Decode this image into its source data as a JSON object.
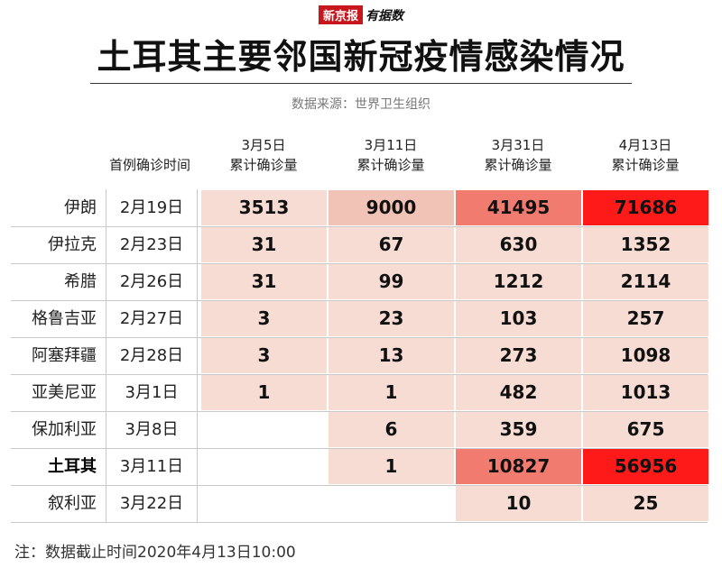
{
  "brand": {
    "paper": "新京报",
    "section": "有据数"
  },
  "title": "土耳其主要邻国新冠疫情感染情况",
  "source": "数据来源：世界卫生组织",
  "note": "注：数据截止时间2020年4月13日10:00",
  "colors": {
    "empty": "#ffffff",
    "low": "#f6dcd3",
    "mid": "#f1c2b6",
    "high": "#f27b70",
    "max": "#ff1a1a"
  },
  "chart_data": {
    "type": "table",
    "columns": [
      {
        "line1": "",
        "line2": "首例确诊时间"
      },
      {
        "line1": "3月5日",
        "line2": "累计确诊量"
      },
      {
        "line1": "3月11日",
        "line2": "累计确诊量"
      },
      {
        "line1": "3月31日",
        "line2": "累计确诊量"
      },
      {
        "line1": "4月13日",
        "line2": "累计确诊量"
      }
    ],
    "rows": [
      {
        "country": "伊朗",
        "first_case": "2月19日",
        "values": [
          "3513",
          "9000",
          "41495",
          "71686"
        ],
        "bold": false
      },
      {
        "country": "伊拉克",
        "first_case": "2月23日",
        "values": [
          "31",
          "67",
          "630",
          "1352"
        ],
        "bold": false
      },
      {
        "country": "希腊",
        "first_case": "2月26日",
        "values": [
          "31",
          "99",
          "1212",
          "2114"
        ],
        "bold": false
      },
      {
        "country": "格鲁吉亚",
        "first_case": "2月27日",
        "values": [
          "3",
          "23",
          "103",
          "257"
        ],
        "bold": false
      },
      {
        "country": "阿塞拜疆",
        "first_case": "2月28日",
        "values": [
          "3",
          "13",
          "273",
          "1098"
        ],
        "bold": false
      },
      {
        "country": "亚美尼亚",
        "first_case": "3月1日",
        "values": [
          "1",
          "1",
          "482",
          "1013"
        ],
        "bold": false
      },
      {
        "country": "保加利亚",
        "first_case": "3月8日",
        "values": [
          "",
          "6",
          "359",
          "675"
        ],
        "bold": false
      },
      {
        "country": "土耳其",
        "first_case": "3月11日",
        "values": [
          "",
          "1",
          "10827",
          "56956"
        ],
        "bold": true
      },
      {
        "country": "叙利亚",
        "first_case": "3月22日",
        "values": [
          "",
          "",
          "10",
          "25"
        ],
        "bold": false
      }
    ]
  }
}
